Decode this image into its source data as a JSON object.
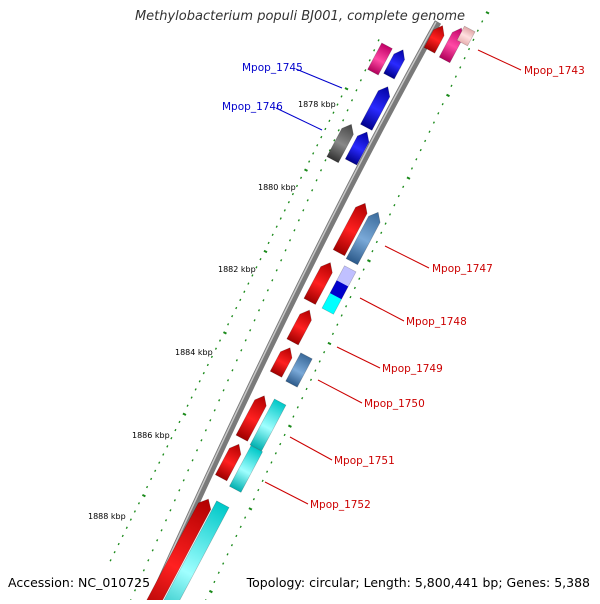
{
  "title": "Methylobacterium populi BJ001, complete genome",
  "accession": "Accession: NC_010725",
  "summary": "Topology: circular; Length: 5,800,441 bp; Genes: 5,388",
  "colors": {
    "backbone": "#808080",
    "tick": "#1a8a1a",
    "gene_red": "#ff0000",
    "gene_blue": "#0000ee",
    "gene_steel": "#4f86c0",
    "gene_cyan": "#00ffff",
    "gene_magenta": "#ff1493",
    "gene_gray": "#555555",
    "label_blue": "#0000cc",
    "label_red": "#cc0000"
  },
  "ruler": [
    "1878 kbp",
    "1880 kbp",
    "1882 kbp",
    "1884 kbp",
    "1886 kbp",
    "1888 kbp"
  ],
  "gene_labels": [
    {
      "id": "Mpop_1743",
      "color": "red"
    },
    {
      "id": "Mpop_1745",
      "color": "blue"
    },
    {
      "id": "Mpop_1746",
      "color": "blue"
    },
    {
      "id": "Mpop_1747",
      "color": "red"
    },
    {
      "id": "Mpop_1748",
      "color": "red"
    },
    {
      "id": "Mpop_1749",
      "color": "red"
    },
    {
      "id": "Mpop_1750",
      "color": "red"
    },
    {
      "id": "Mpop_1751",
      "color": "red"
    },
    {
      "id": "Mpop_1752",
      "color": "red"
    }
  ]
}
